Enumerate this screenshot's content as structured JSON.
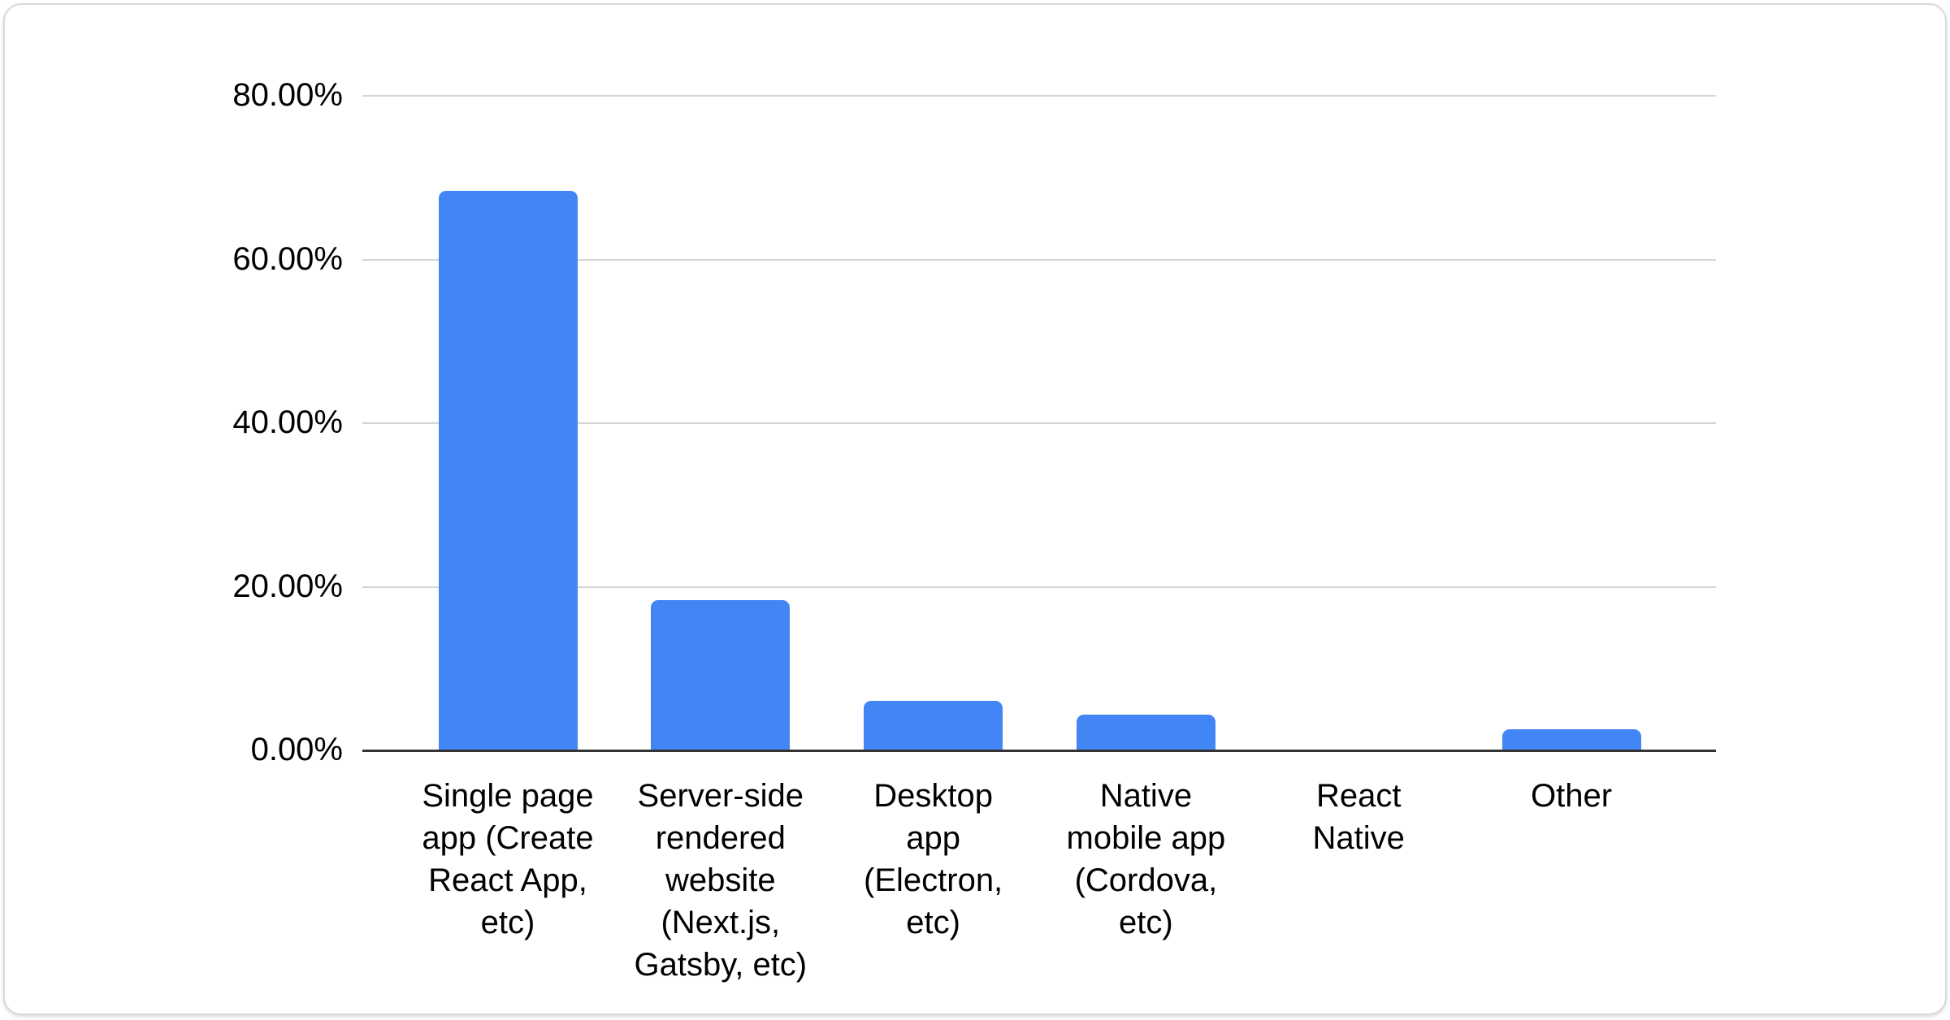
{
  "window": {
    "background": "#ffffff",
    "card_border_color": "#d8d8de",
    "card_background": "#ffffff"
  },
  "chart_data": {
    "type": "bar",
    "title": "",
    "xlabel": "",
    "ylabel": "",
    "legend": "none",
    "grid": true,
    "ylim": [
      0,
      80
    ],
    "unit": "%",
    "categories": [
      "Single page app (Create React App, etc)",
      "Server-side rendered website (Next.js, Gatsby, etc)",
      "Desktop app (Electron, etc)",
      "Native mobile app (Cordova, etc)",
      "React Native",
      "Other"
    ],
    "category_lines": [
      [
        "Single page",
        "app (Create",
        "React App,",
        "etc)"
      ],
      [
        "Server-side",
        "rendered",
        "website",
        "(Next.js,",
        "Gatsby, etc)"
      ],
      [
        "Desktop",
        "app",
        "(Electron,",
        "etc)"
      ],
      [
        "Native",
        "mobile app",
        "(Cordova,",
        "etc)"
      ],
      [
        "React",
        "Native"
      ],
      [
        "Other"
      ]
    ],
    "values": [
      68.4,
      18.4,
      6.1,
      4.4,
      0,
      2.6
    ],
    "y_ticks": [
      {
        "value": 80,
        "label": "80.00%"
      },
      {
        "value": 60,
        "label": "60.00%"
      },
      {
        "value": 40,
        "label": "40.00%"
      },
      {
        "value": 20,
        "label": "20.00%"
      },
      {
        "value": 0,
        "label": "0.00%"
      }
    ],
    "bar_color": "#4285f4",
    "gridline_color": "#d5d5d5",
    "axis_line_color": "#333333",
    "label_color": "#000000"
  }
}
